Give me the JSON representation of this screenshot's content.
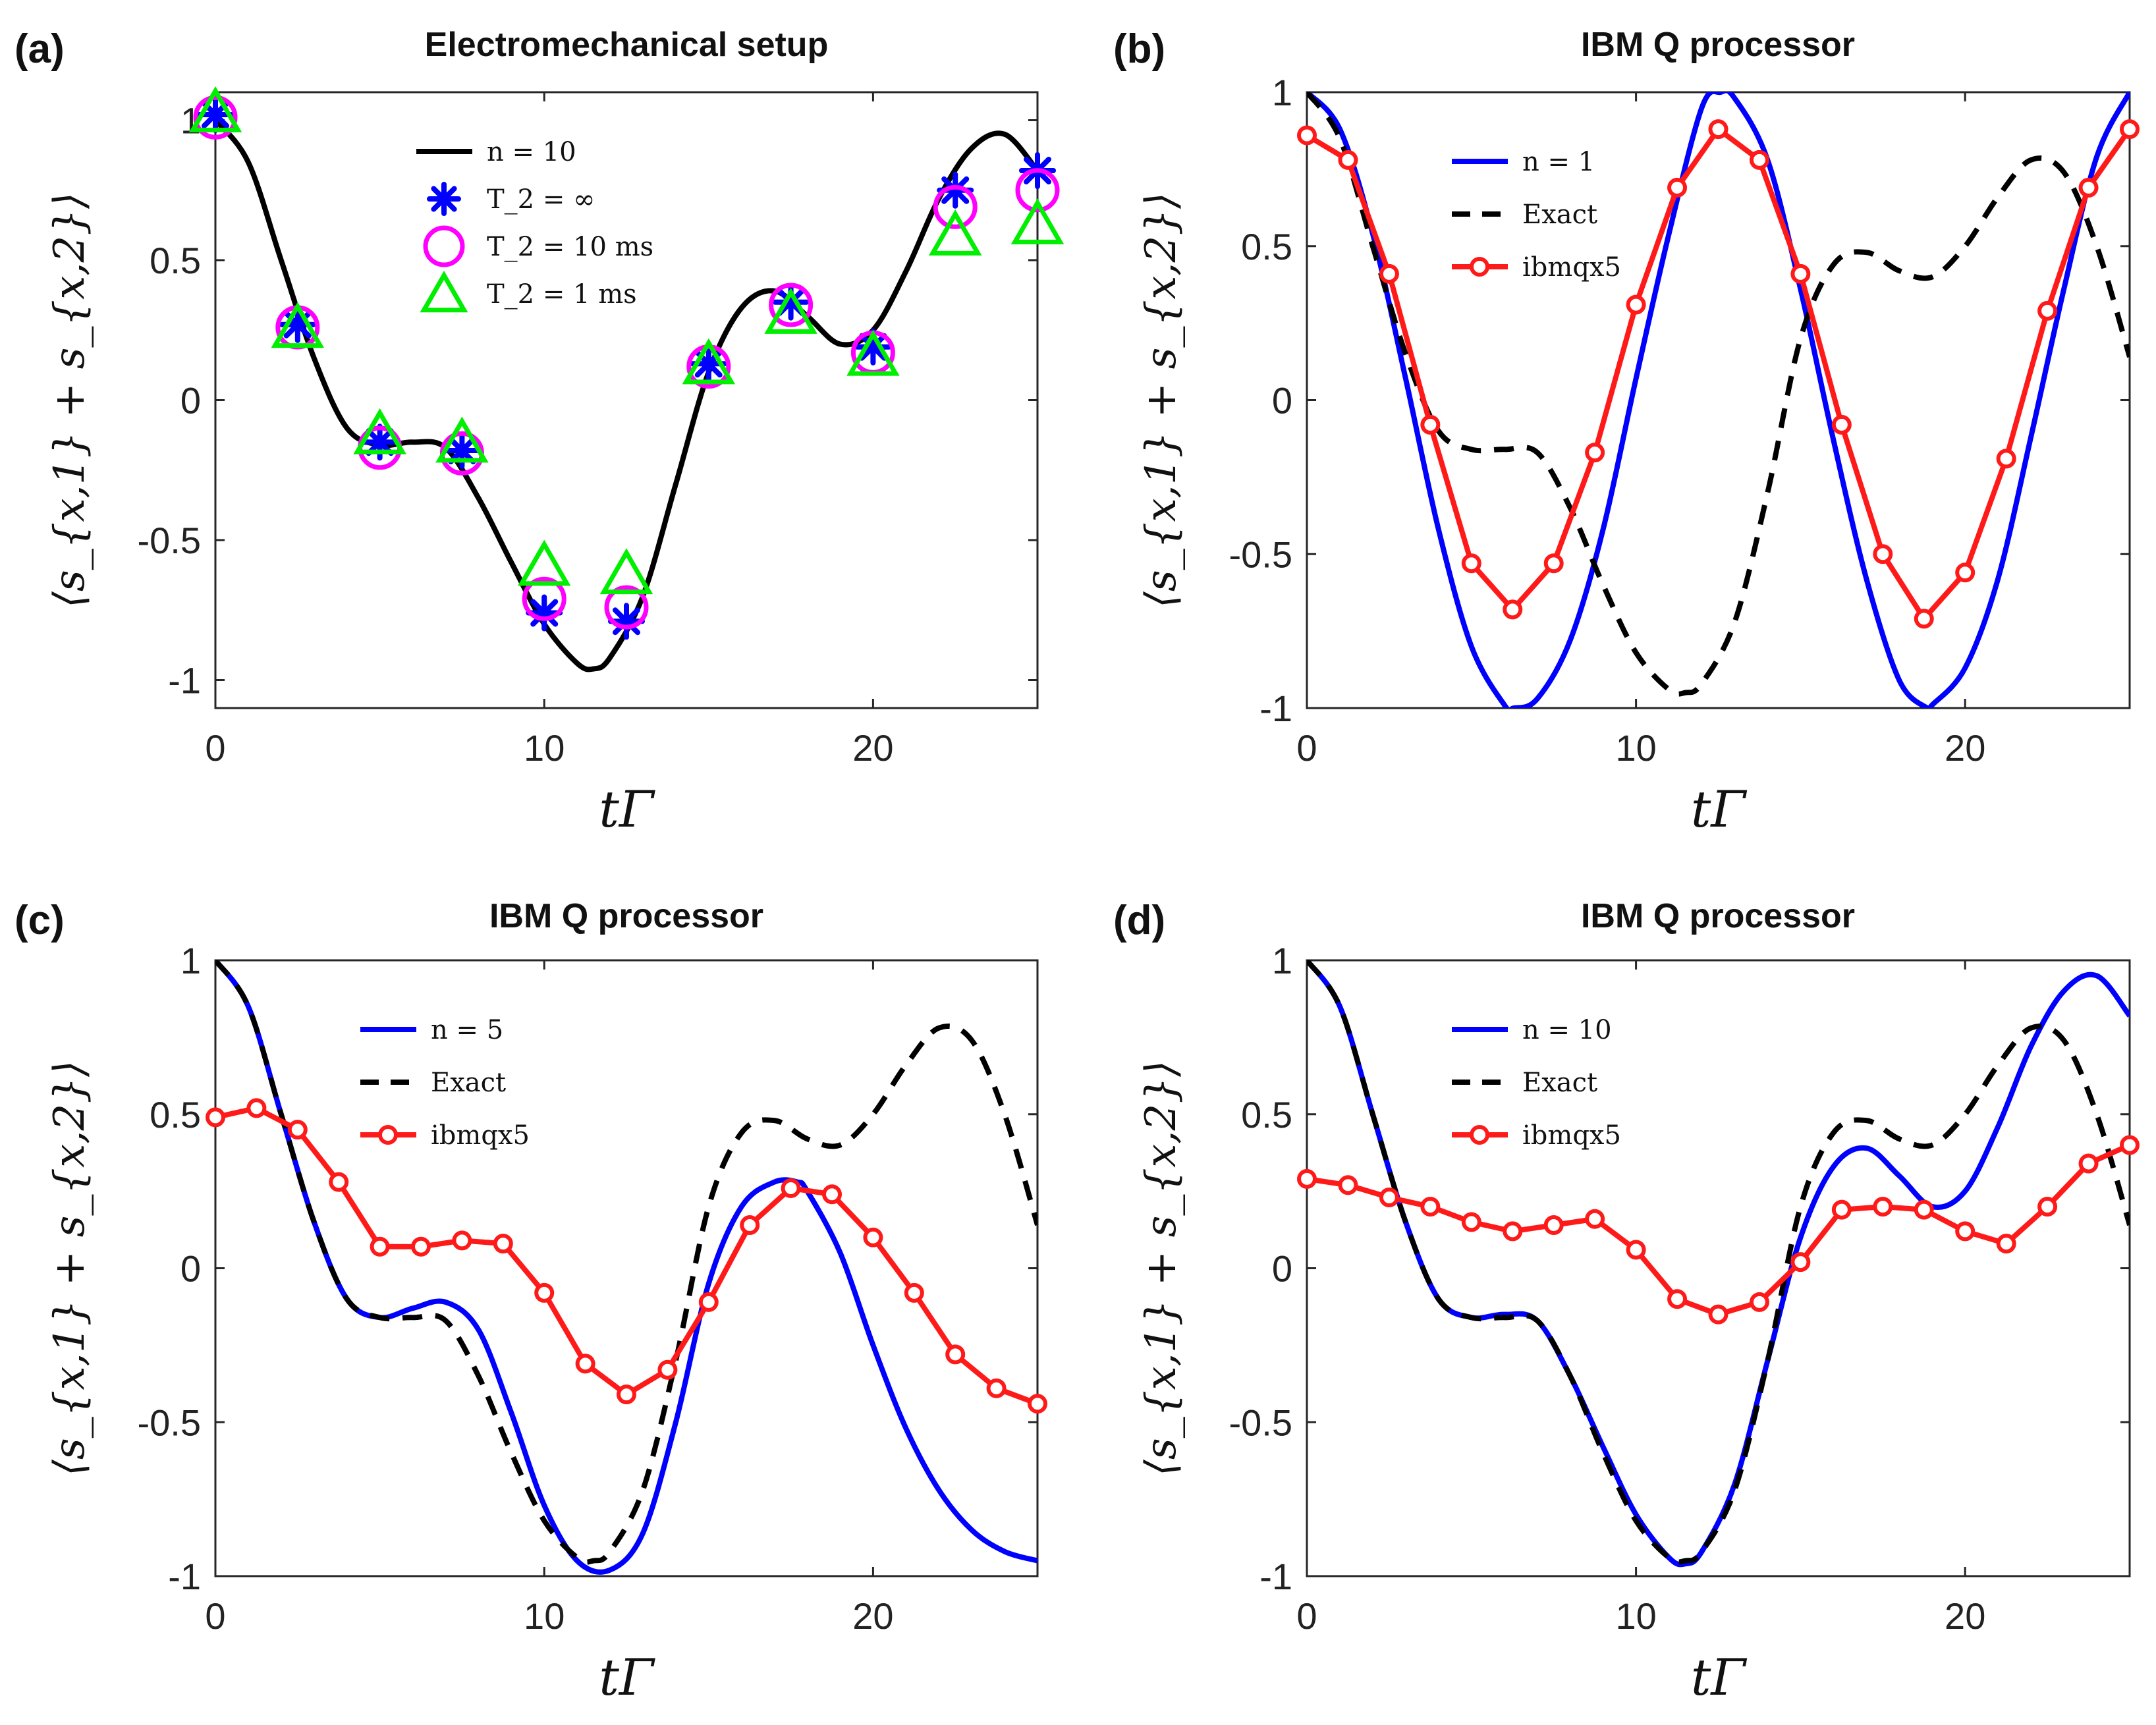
{
  "figure": {
    "x_label": "tΓ",
    "y_label": "⟨s_{x,1} + s_{x,2}⟩",
    "x_ticks": [
      "0",
      "10",
      "20"
    ],
    "y_ticks": [
      "-1",
      "-0.5",
      "0",
      "0.5",
      "1"
    ]
  },
  "colors": {
    "black": "#000000",
    "blue": "#0000ff",
    "red": "#ff1a1a",
    "magenta": "#ff00ff",
    "green": "#00ee00"
  },
  "chart_data": [
    {
      "id": "a",
      "panel_label": "(a)",
      "title": "Electromechanical setup",
      "type": "line",
      "xlim": [
        0,
        25
      ],
      "ylim": [
        -1.1,
        1.1
      ],
      "xlabel": "tΓ",
      "ylabel": "⟨s_{x,1} + s_{x,2}⟩",
      "legend_position": "top-center",
      "series": [
        {
          "name": "n = 10",
          "style": "solid",
          "color": "#000000",
          "x": [
            0,
            1,
            2,
            3,
            4,
            5,
            6,
            7,
            8,
            9,
            10,
            11,
            11.5,
            12,
            13,
            14,
            15,
            16,
            17,
            18,
            19,
            20,
            21,
            22,
            23,
            24,
            25
          ],
          "y": [
            1,
            0.85,
            0.5,
            0.15,
            -0.1,
            -0.16,
            -0.15,
            -0.17,
            -0.35,
            -0.58,
            -0.8,
            -0.94,
            -0.96,
            -0.92,
            -0.7,
            -0.3,
            0.1,
            0.33,
            0.39,
            0.3,
            0.2,
            0.25,
            0.46,
            0.72,
            0.9,
            0.95,
            0.82
          ]
        },
        {
          "name": "T_2 = ∞",
          "style": "marker-star",
          "color": "#0000ff",
          "x": [
            0,
            2.5,
            5,
            7.5,
            10,
            12.5,
            15,
            17.5,
            20,
            22.5,
            25
          ],
          "y": [
            1.02,
            0.27,
            -0.15,
            -0.18,
            -0.76,
            -0.79,
            0.13,
            0.35,
            0.19,
            0.75,
            0.82
          ]
        },
        {
          "name": "T_2 = 10 ms",
          "style": "marker-circle",
          "color": "#ff00ff",
          "x": [
            0,
            2.5,
            5,
            7.5,
            10,
            12.5,
            15,
            17.5,
            20,
            22.5,
            25
          ],
          "y": [
            1.01,
            0.26,
            -0.17,
            -0.19,
            -0.71,
            -0.74,
            0.12,
            0.34,
            0.17,
            0.69,
            0.75
          ]
        },
        {
          "name": "T_2 = 1 ms",
          "style": "marker-triangle",
          "color": "#00ee00",
          "x": [
            0,
            2.5,
            5,
            7.5,
            10,
            12.5,
            15,
            17.5,
            20,
            22.5,
            25
          ],
          "y": [
            1.02,
            0.25,
            -0.13,
            -0.16,
            -0.6,
            -0.63,
            0.12,
            0.3,
            0.15,
            0.58,
            0.62
          ]
        }
      ]
    },
    {
      "id": "b",
      "panel_label": "(b)",
      "title": "IBM Q processor",
      "type": "line",
      "xlim": [
        0,
        25
      ],
      "ylim": [
        -1,
        1
      ],
      "xlabel": "tΓ",
      "ylabel": "⟨s_{x,1} + s_{x,2}⟩",
      "legend_position": "top-left",
      "series": [
        {
          "name": "n = 1",
          "style": "solid",
          "color": "#0000ff",
          "x": [
            0,
            1,
            2,
            3,
            4,
            5,
            6,
            6.28,
            7,
            8,
            9,
            10,
            11,
            12,
            12.57,
            13,
            14,
            15,
            16,
            17,
            18,
            18.85,
            19,
            20,
            21,
            22,
            23,
            24,
            25
          ],
          "y": [
            1,
            0.88,
            0.54,
            0.07,
            -0.42,
            -0.8,
            -0.99,
            -1,
            -0.97,
            -0.78,
            -0.42,
            0.07,
            0.54,
            0.95,
            1,
            0.98,
            0.78,
            0.36,
            -0.13,
            -0.58,
            -0.91,
            -1,
            -0.99,
            -0.87,
            -0.58,
            -0.12,
            0.36,
            0.79,
            1
          ]
        },
        {
          "name": "Exact",
          "style": "dashed",
          "color": "#000000",
          "x": [
            0,
            1,
            2,
            3,
            4,
            5,
            6,
            7,
            8,
            9,
            10,
            11,
            11.5,
            12,
            13,
            14,
            15,
            16,
            17,
            18,
            19,
            20,
            21,
            22,
            23,
            24,
            25
          ],
          "y": [
            1,
            0.85,
            0.5,
            0.15,
            -0.1,
            -0.16,
            -0.16,
            -0.17,
            -0.35,
            -0.6,
            -0.82,
            -0.94,
            -0.95,
            -0.92,
            -0.72,
            -0.3,
            0.2,
            0.44,
            0.48,
            0.42,
            0.4,
            0.5,
            0.66,
            0.78,
            0.74,
            0.5,
            0.14
          ]
        },
        {
          "name": "ibmqx5",
          "style": "line-circle",
          "color": "#ff1a1a",
          "x": [
            0,
            1.25,
            2.5,
            3.75,
            5,
            6.25,
            7.5,
            8.75,
            10,
            11.25,
            12.5,
            13.75,
            15,
            16.25,
            17.5,
            18.75,
            20,
            21.25,
            22.5,
            23.75,
            25
          ],
          "y": [
            0.86,
            0.78,
            0.41,
            -0.08,
            -0.53,
            -0.68,
            -0.53,
            -0.17,
            0.31,
            0.69,
            0.88,
            0.78,
            0.41,
            -0.08,
            -0.5,
            -0.71,
            -0.56,
            -0.19,
            0.29,
            0.69,
            0.88
          ]
        }
      ]
    },
    {
      "id": "c",
      "panel_label": "(c)",
      "title": "IBM Q processor",
      "type": "line",
      "xlim": [
        0,
        25
      ],
      "ylim": [
        -1,
        1
      ],
      "xlabel": "tΓ",
      "ylabel": "⟨s_{x,1} + s_{x,2}⟩",
      "legend_position": "top-left",
      "series": [
        {
          "name": "n = 5",
          "style": "solid",
          "color": "#0000ff",
          "x": [
            0,
            1,
            2,
            3,
            4,
            5,
            6,
            7,
            8,
            9,
            10,
            11,
            12,
            13,
            14,
            15,
            16,
            17,
            17.7,
            18,
            19,
            20,
            21,
            22,
            23,
            24,
            25
          ],
          "y": [
            1,
            0.85,
            0.5,
            0.15,
            -0.1,
            -0.16,
            -0.13,
            -0.11,
            -0.2,
            -0.47,
            -0.77,
            -0.95,
            -0.98,
            -0.86,
            -0.5,
            -0.05,
            0.2,
            0.28,
            0.28,
            0.25,
            0.05,
            -0.25,
            -0.52,
            -0.72,
            -0.85,
            -0.92,
            -0.95
          ]
        },
        {
          "name": "Exact",
          "style": "dashed",
          "color": "#000000",
          "x": [
            0,
            1,
            2,
            3,
            4,
            5,
            6,
            7,
            8,
            9,
            10,
            11,
            11.5,
            12,
            13,
            14,
            15,
            16,
            17,
            18,
            19,
            20,
            21,
            22,
            23,
            24,
            25
          ],
          "y": [
            1,
            0.85,
            0.5,
            0.15,
            -0.1,
            -0.16,
            -0.16,
            -0.17,
            -0.35,
            -0.6,
            -0.82,
            -0.94,
            -0.95,
            -0.92,
            -0.72,
            -0.3,
            0.2,
            0.44,
            0.48,
            0.42,
            0.4,
            0.5,
            0.66,
            0.78,
            0.74,
            0.5,
            0.14
          ]
        },
        {
          "name": "ibmqx5",
          "style": "line-circle",
          "color": "#ff1a1a",
          "x": [
            0,
            1.25,
            2.5,
            3.75,
            5,
            6.25,
            7.5,
            8.75,
            10,
            11.25,
            12.5,
            13.75,
            15,
            16.25,
            17.5,
            18.75,
            20,
            21.25,
            22.5,
            23.75,
            25
          ],
          "y": [
            0.49,
            0.52,
            0.45,
            0.28,
            0.07,
            0.07,
            0.09,
            0.08,
            -0.08,
            -0.31,
            -0.41,
            -0.33,
            -0.11,
            0.14,
            0.26,
            0.24,
            0.1,
            -0.08,
            -0.28,
            -0.39,
            -0.44
          ]
        }
      ]
    },
    {
      "id": "d",
      "panel_label": "(d)",
      "title": "IBM Q processor",
      "type": "line",
      "xlim": [
        0,
        25
      ],
      "ylim": [
        -1,
        1
      ],
      "xlabel": "tΓ",
      "ylabel": "⟨s_{x,1} + s_{x,2}⟩",
      "legend_position": "top-left",
      "series": [
        {
          "name": "n = 10",
          "style": "solid",
          "color": "#0000ff",
          "x": [
            0,
            1,
            2,
            3,
            4,
            5,
            6,
            7,
            8,
            9,
            10,
            11,
            11.5,
            12,
            13,
            14,
            15,
            16,
            17,
            18,
            19,
            20,
            21,
            22,
            23,
            24,
            25
          ],
          "y": [
            1,
            0.85,
            0.5,
            0.15,
            -0.1,
            -0.16,
            -0.15,
            -0.17,
            -0.35,
            -0.58,
            -0.8,
            -0.94,
            -0.96,
            -0.92,
            -0.7,
            -0.3,
            0.1,
            0.33,
            0.39,
            0.3,
            0.2,
            0.25,
            0.46,
            0.72,
            0.9,
            0.95,
            0.82
          ]
        },
        {
          "name": "Exact",
          "style": "dashed",
          "color": "#000000",
          "x": [
            0,
            1,
            2,
            3,
            4,
            5,
            6,
            7,
            8,
            9,
            10,
            11,
            11.5,
            12,
            13,
            14,
            15,
            16,
            17,
            18,
            19,
            20,
            21,
            22,
            23,
            24,
            25
          ],
          "y": [
            1,
            0.85,
            0.5,
            0.15,
            -0.1,
            -0.16,
            -0.16,
            -0.17,
            -0.35,
            -0.6,
            -0.82,
            -0.94,
            -0.95,
            -0.92,
            -0.72,
            -0.3,
            0.2,
            0.44,
            0.48,
            0.42,
            0.4,
            0.5,
            0.66,
            0.78,
            0.74,
            0.5,
            0.14
          ]
        },
        {
          "name": "ibmqx5",
          "style": "line-circle",
          "color": "#ff1a1a",
          "x": [
            0,
            1.25,
            2.5,
            3.75,
            5,
            6.25,
            7.5,
            8.75,
            10,
            11.25,
            12.5,
            13.75,
            15,
            16.25,
            17.5,
            18.75,
            20,
            21.25,
            22.5,
            23.75,
            25
          ],
          "y": [
            0.29,
            0.27,
            0.23,
            0.2,
            0.15,
            0.12,
            0.14,
            0.16,
            0.06,
            -0.1,
            -0.15,
            -0.11,
            0.02,
            0.19,
            0.2,
            0.19,
            0.12,
            0.08,
            0.2,
            0.34,
            0.4
          ]
        }
      ]
    }
  ]
}
